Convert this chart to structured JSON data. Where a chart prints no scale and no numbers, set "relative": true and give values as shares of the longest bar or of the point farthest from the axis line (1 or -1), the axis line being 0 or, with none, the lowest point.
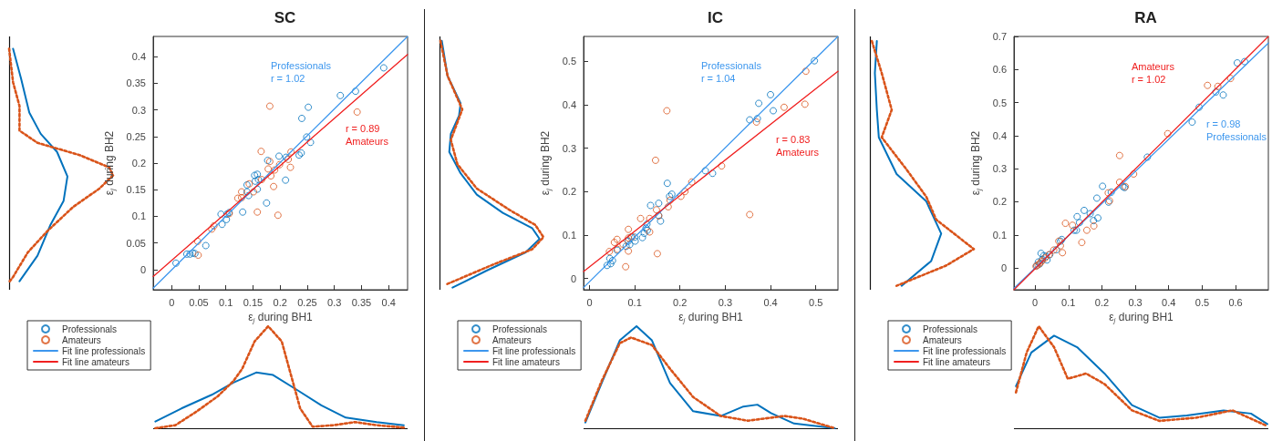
{
  "chart_data": [
    {
      "type": "line",
      "relative": true,
      "orientation": "horizontal",
      "ylim": [
        -0.038,
        0.438
      ],
      "series": [
        {
          "color": "#0072bd",
          "line_style": "solid",
          "x": [
            0.415,
            0.358,
            0.295,
            0.255,
            0.221,
            0.175,
            0.129,
            0.084,
            0.026,
            -0.022
          ],
          "values": [
            0.038,
            0.116,
            0.194,
            0.304,
            0.461,
            0.561,
            0.524,
            0.398,
            0.273,
            0.1
          ]
        },
        {
          "color": "#d95319",
          "line_style": "dotted",
          "x": [
            0.415,
            0.352,
            0.307,
            0.261,
            0.238,
            0.215,
            0.192,
            0.177,
            0.152,
            0.118,
            0.072,
            0.032,
            -0.014,
            -0.022
          ],
          "values": [
            0,
            0.038,
            0.1,
            0.1,
            0.273,
            0.68,
            0.962,
            1,
            0.868,
            0.618,
            0.367,
            0.179,
            0.038,
            0.006
          ]
        }
      ]
    },
    {
      "type": "scatter",
      "title": "SC",
      "xlabel": "ε$_{j}$ during BH1",
      "ylabel": "ε$_{j}$ during BH2",
      "xlim": [
        -0.034,
        0.435
      ],
      "ylim": [
        -0.038,
        0.438
      ],
      "xticks": [
        0,
        0.05,
        0.1,
        0.15,
        0.2,
        0.25,
        0.3,
        0.35,
        0.4
      ],
      "yticks": [
        0,
        0.05,
        0.1,
        0.15,
        0.2,
        0.25,
        0.3,
        0.35,
        0.4
      ],
      "marker": "circle",
      "legend": "bottom left",
      "annotations": [
        "Professionals\nr = 1.02",
        "r = 0.89\nAmateurs"
      ],
      "series": [
        {
          "name": "Professionals",
          "type": "scatter",
          "color": "#0072bd",
          "x": [
            0.008,
            0.028,
            0.034,
            0.039,
            0.043,
            0.063,
            0.091,
            0.093,
            0.101,
            0.102,
            0.106,
            0.131,
            0.139,
            0.139,
            0.142,
            0.153,
            0.154,
            0.158,
            0.158,
            0.16,
            0.175,
            0.177,
            0.198,
            0.21,
            0.211,
            0.235,
            0.239,
            0.24,
            0.249,
            0.252,
            0.256,
            0.311,
            0.339,
            0.391
          ],
          "values": [
            0.012,
            0.029,
            0.029,
            0.031,
            0.03,
            0.045,
            0.104,
            0.085,
            0.094,
            0.104,
            0.107,
            0.108,
            0.146,
            0.159,
            0.139,
            0.177,
            0.166,
            0.179,
            0.151,
            0.169,
            0.125,
            0.205,
            0.213,
            0.168,
            0.211,
            0.215,
            0.219,
            0.284,
            0.249,
            0.305,
            0.239,
            0.327,
            0.335,
            0.379
          ]
        },
        {
          "name": "Amateurs",
          "type": "scatter",
          "color": "#d95319",
          "x": [
            0.048,
            0.049,
            0.074,
            0.078,
            0.106,
            0.122,
            0.129,
            0.129,
            0.143,
            0.151,
            0.158,
            0.165,
            0.166,
            0.178,
            0.181,
            0.181,
            0.183,
            0.188,
            0.19,
            0.196,
            0.199,
            0.215,
            0.219,
            0.22,
            0.342
          ],
          "values": [
            0.053,
            0.027,
            0.076,
            0.082,
            0.105,
            0.134,
            0.146,
            0.135,
            0.161,
            0.146,
            0.108,
            0.222,
            0.169,
            0.189,
            0.307,
            0.203,
            0.176,
            0.156,
            0.187,
            0.102,
            0.197,
            0.207,
            0.192,
            0.221,
            0.296
          ]
        },
        {
          "name": "Fit line professionals",
          "type": "line",
          "marker": "none",
          "color": "#3d97ee",
          "x": [
            -0.034,
            0.435
          ],
          "values": [
            -0.035,
            0.438
          ]
        },
        {
          "name": "Fit line amateurs",
          "type": "line",
          "marker": "none",
          "color": "#f02020",
          "x": [
            -0.034,
            0.435
          ],
          "values": [
            -0.013,
            0.404
          ]
        }
      ]
    },
    {
      "type": "line",
      "relative": true,
      "xlim": [
        -0.034,
        0.435
      ],
      "series": [
        {
          "color": "#0072bd",
          "line_style": "solid",
          "x": [
            -0.03,
            0.018,
            0.074,
            0.114,
            0.156,
            0.187,
            0.232,
            0.276,
            0.321,
            0.378,
            0.428
          ],
          "values": [
            0.066,
            0.194,
            0.328,
            0.448,
            0.546,
            0.522,
            0.373,
            0.224,
            0.104,
            0.06,
            0.03
          ]
        },
        {
          "color": "#d95319",
          "line_style": "dotted",
          "x": [
            -0.03,
            0.007,
            0.046,
            0.085,
            0.114,
            0.13,
            0.153,
            0.178,
            0.203,
            0.22,
            0.237,
            0.26,
            0.299,
            0.338,
            0.378,
            0.428
          ],
          "values": [
            0,
            0.03,
            0.164,
            0.313,
            0.463,
            0.582,
            0.851,
            1,
            0.851,
            0.522,
            0.194,
            0.015,
            0.03,
            0.06,
            0.03,
            0.006
          ]
        }
      ]
    },
    {
      "type": "line",
      "relative": true,
      "orientation": "horizontal",
      "ylim": [
        -0.026,
        0.557
      ],
      "series": [
        {
          "color": "#0072bd",
          "line_style": "solid",
          "x": [
            0.547,
            0.466,
            0.403,
            0.375,
            0.333,
            0.291,
            0.242,
            0.193,
            0.151,
            0.116,
            0.091,
            0.06,
            0.018,
            -0.021
          ],
          "values": [
            0.022,
            0.078,
            0.203,
            0.188,
            0.109,
            0.094,
            0.203,
            0.359,
            0.609,
            0.891,
            0.963,
            0.828,
            0.453,
            0.125
          ]
        },
        {
          "color": "#d95319",
          "line_style": "dotted",
          "x": [
            0.547,
            0.466,
            0.389,
            0.319,
            0.263,
            0.207,
            0.158,
            0.123,
            0.095,
            0.067,
            0.032,
            -0.014
          ],
          "values": [
            0.009,
            0.078,
            0.219,
            0.109,
            0.172,
            0.359,
            0.672,
            0.922,
            1,
            0.891,
            0.516,
            0.063
          ]
        }
      ]
    },
    {
      "type": "scatter",
      "title": "IC",
      "xlabel": "ε$_{j}$ during BH1",
      "ylabel": "ε$_{j}$ during BH2",
      "xlim": [
        -0.013,
        0.549
      ],
      "ylim": [
        -0.026,
        0.557
      ],
      "xticks": [
        0,
        0.1,
        0.2,
        0.3,
        0.4,
        0.5
      ],
      "yticks": [
        0,
        0.1,
        0.2,
        0.3,
        0.4,
        0.5
      ],
      "marker": "circle",
      "legend": "bottom left",
      "annotations": [
        "Professionals\nr = 1.04",
        "r = 0.83\nAmateurs"
      ],
      "series": [
        {
          "name": "Professionals",
          "type": "scatter",
          "color": "#0072bd",
          "x": [
            0.039,
            0.045,
            0.047,
            0.051,
            0.061,
            0.081,
            0.086,
            0.089,
            0.092,
            0.101,
            0.1,
            0.117,
            0.121,
            0.125,
            0.127,
            0.128,
            0.135,
            0.153,
            0.153,
            0.157,
            0.172,
            0.177,
            0.182,
            0.256,
            0.272,
            0.354,
            0.371,
            0.374,
            0.4,
            0.406,
            0.497
          ],
          "values": [
            0.03,
            0.046,
            0.034,
            0.041,
            0.065,
            0.074,
            0.086,
            0.078,
            0.095,
            0.086,
            0.095,
            0.094,
            0.104,
            0.116,
            0.125,
            0.111,
            0.168,
            0.173,
            0.145,
            0.132,
            0.219,
            0.189,
            0.194,
            0.248,
            0.242,
            0.365,
            0.368,
            0.403,
            0.423,
            0.386,
            0.501
          ]
        },
        {
          "name": "Amateurs",
          "type": "scatter",
          "color": "#d95319",
          "x": [
            0.044,
            0.055,
            0.061,
            0.062,
            0.074,
            0.08,
            0.086,
            0.086,
            0.086,
            0.094,
            0.113,
            0.133,
            0.133,
            0.146,
            0.148,
            0.15,
            0.153,
            0.171,
            0.174,
            0.178,
            0.202,
            0.211,
            0.226,
            0.292,
            0.354,
            0.369,
            0.43,
            0.476,
            0.478
          ],
          "values": [
            0.062,
            0.083,
            0.09,
            0.067,
            0.079,
            0.027,
            0.093,
            0.063,
            0.113,
            0.096,
            0.138,
            0.138,
            0.107,
            0.272,
            0.158,
            0.057,
            0.144,
            0.386,
            0.165,
            0.18,
            0.189,
            0.2,
            0.222,
            0.259,
            0.147,
            0.36,
            0.394,
            0.401,
            0.477
          ]
        },
        {
          "name": "Fit line professionals",
          "type": "line",
          "marker": "none",
          "color": "#3d97ee",
          "x": [
            -0.013,
            0.549
          ],
          "values": [
            -0.021,
            0.557
          ]
        },
        {
          "name": "Fit line amateurs",
          "type": "line",
          "marker": "none",
          "color": "#f02020",
          "x": [
            -0.013,
            0.549
          ],
          "values": [
            0.016,
            0.477
          ]
        }
      ]
    },
    {
      "type": "line",
      "relative": true,
      "xlim": [
        -0.013,
        0.549
      ],
      "series": [
        {
          "color": "#0072bd",
          "line_style": "solid",
          "x": [
            -0.009,
            0.027,
            0.067,
            0.104,
            0.138,
            0.178,
            0.229,
            0.29,
            0.34,
            0.371,
            0.401,
            0.452,
            0.542
          ],
          "values": [
            0.056,
            0.444,
            0.861,
            1,
            0.861,
            0.444,
            0.167,
            0.12,
            0.213,
            0.231,
            0.148,
            0.046,
            0
          ]
        },
        {
          "color": "#d95319",
          "line_style": "dotted",
          "x": [
            -0.009,
            0.027,
            0.067,
            0.092,
            0.138,
            0.178,
            0.229,
            0.29,
            0.35,
            0.431,
            0.472,
            0.542
          ],
          "values": [
            0.074,
            0.463,
            0.833,
            0.889,
            0.815,
            0.583,
            0.306,
            0.12,
            0.074,
            0.12,
            0.093,
            0
          ]
        }
      ]
    },
    {
      "type": "line",
      "relative": true,
      "orientation": "horizontal",
      "ylim": [
        -0.066,
        0.7
      ],
      "series": [
        {
          "color": "#0072bd",
          "line_style": "solid",
          "x": [
            0.686,
            0.589,
            0.478,
            0.395,
            0.284,
            0.201,
            0.104,
            0.021,
            -0.054
          ],
          "values": [
            0.067,
            0.048,
            0.067,
            0.086,
            0.257,
            0.543,
            0.686,
            0.59,
            0.305
          ]
        },
        {
          "color": "#d95319",
          "line_style": "dotted",
          "x": [
            0.686,
            0.589,
            0.478,
            0.395,
            0.298,
            0.215,
            0.146,
            0.057,
            0.007,
            -0.054
          ],
          "values": [
            0.019,
            0.114,
            0.21,
            0.114,
            0.352,
            0.543,
            0.638,
            1,
            0.733,
            0.257
          ]
        }
      ]
    },
    {
      "type": "scatter",
      "title": "RA",
      "xlabel": "ε$_{j}$ during BH1",
      "ylabel": "ε$_{j}$ during BH2",
      "xlim": [
        -0.063,
        0.698
      ],
      "ylim": [
        -0.066,
        0.7
      ],
      "xticks": [
        0,
        0.1,
        0.2,
        0.3,
        0.4,
        0.5,
        0.6
      ],
      "yticks": [
        0,
        0.1,
        0.2,
        0.3,
        0.4,
        0.5,
        0.6,
        0.7
      ],
      "marker": "circle",
      "legend": "bottom left",
      "annotations": [
        "r = 0.98\nProfessionals",
        "Amateurs\nr = 1.02"
      ],
      "series": [
        {
          "name": "Professionals",
          "type": "scatter",
          "color": "#0072bd",
          "x": [
            0.005,
            0.01,
            0.014,
            0.018,
            0.022,
            0.026,
            0.033,
            0.036,
            0.044,
            0.064,
            0.076,
            0.08,
            0.117,
            0.124,
            0.126,
            0.133,
            0.147,
            0.165,
            0.175,
            0.185,
            0.188,
            0.202,
            0.22,
            0.228,
            0.263,
            0.268,
            0.336,
            0.47,
            0.491,
            0.541,
            0.563,
            0.605,
            0.627
          ],
          "values": [
            0.007,
            0.018,
            0.012,
            0.044,
            0.026,
            0.037,
            0.035,
            0.024,
            0.04,
            0.055,
            0.081,
            0.086,
            0.114,
            0.114,
            0.155,
            0.137,
            0.174,
            0.164,
            0.143,
            0.211,
            0.151,
            0.247,
            0.199,
            0.229,
            0.246,
            0.243,
            0.335,
            0.441,
            0.486,
            0.532,
            0.523,
            0.62,
            0.624
          ]
        },
        {
          "name": "Amateurs",
          "type": "scatter",
          "color": "#d95319",
          "x": [
            0.003,
            0.009,
            0.015,
            0.021,
            0.03,
            0.042,
            0.056,
            0.071,
            0.076,
            0.082,
            0.091,
            0.112,
            0.14,
            0.155,
            0.176,
            0.219,
            0.223,
            0.253,
            0.253,
            0.27,
            0.295,
            0.397,
            0.516,
            0.547,
            0.585
          ],
          "values": [
            0.005,
            0.009,
            0.015,
            0.021,
            0.03,
            0.04,
            0.054,
            0.081,
            0.067,
            0.046,
            0.135,
            0.129,
            0.077,
            0.114,
            0.127,
            0.227,
            0.203,
            0.34,
            0.259,
            0.246,
            0.284,
            0.406,
            0.552,
            0.549,
            0.573
          ]
        },
        {
          "name": "Fit line professionals",
          "type": "line",
          "marker": "none",
          "color": "#3d97ee",
          "x": [
            -0.063,
            0.698
          ],
          "values": [
            -0.062,
            0.68
          ]
        },
        {
          "name": "Fit line amateurs",
          "type": "line",
          "marker": "none",
          "color": "#f02020",
          "x": [
            -0.063,
            0.698
          ],
          "values": [
            -0.066,
            0.7
          ]
        }
      ]
    },
    {
      "type": "line",
      "relative": true,
      "xlim": [
        -0.063,
        0.698
      ],
      "series": [
        {
          "color": "#0072bd",
          "line_style": "solid",
          "x": [
            -0.057,
            -0.011,
            0.057,
            0.126,
            0.208,
            0.29,
            0.372,
            0.454,
            0.564,
            0.646,
            0.695
          ],
          "values": [
            0.412,
            0.742,
            0.907,
            0.794,
            0.536,
            0.227,
            0.103,
            0.124,
            0.175,
            0.144,
            0.041
          ]
        },
        {
          "color": "#d95319",
          "line_style": "dotted",
          "x": [
            -0.057,
            -0.025,
            0.011,
            0.057,
            0.098,
            0.153,
            0.208,
            0.29,
            0.372,
            0.481,
            0.591,
            0.695
          ],
          "values": [
            0.351,
            0.742,
            1,
            0.794,
            0.485,
            0.536,
            0.433,
            0.175,
            0.072,
            0.103,
            0.175,
            0.021
          ]
        }
      ]
    }
  ]
}
